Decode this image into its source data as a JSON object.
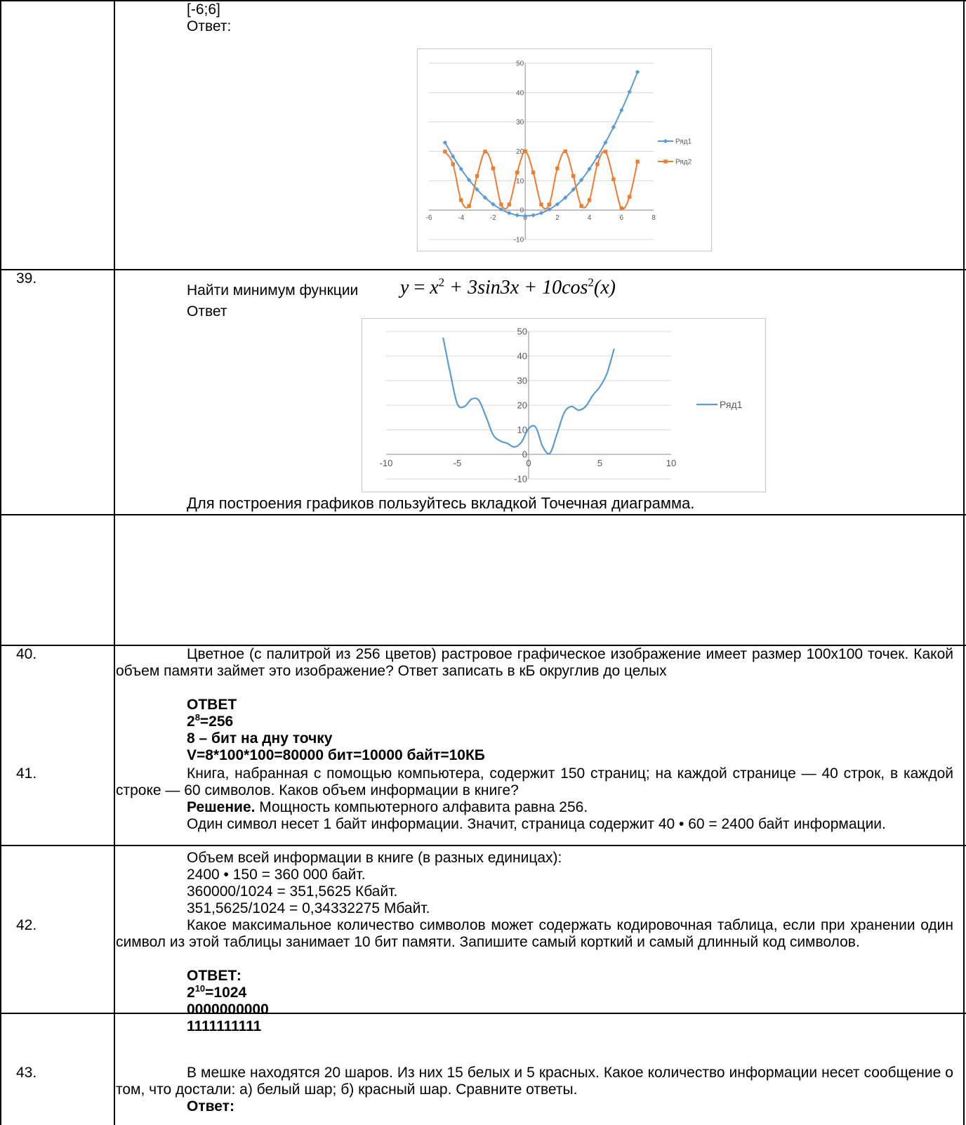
{
  "rows": {
    "r38": {
      "range": "[-6;6]",
      "answer_label": "Ответ:"
    },
    "r39": {
      "number": "39.",
      "task_prefix": "Найти минимум функции",
      "formula": {
        "y": "y",
        "eq": " = ",
        "x": "x",
        "p1": "2",
        "mid": " + 3sin3x + 10cos",
        "p2": "2",
        "tail": "(x)"
      },
      "answer_label": "Ответ",
      "note": "Для построения графиков пользуйтесь вкладкой Точечная диаграмма."
    },
    "r40": {
      "number": "40.",
      "text": "Цветное (с палитрой из 256 цветов) растровое графическое изображение имеет размер 100х100 точек. Какой объем памяти займет это изображение? Ответ записать в кБ округлив до целых",
      "answer_title": "ОТВЕТ",
      "pow_base": "2",
      "pow_exp": "8",
      "pow_rest": "=256",
      "line2": "8 – бит на дну точку",
      "line3": "V=8*100*100=80000 бит=10000 байт=10КБ"
    },
    "r41": {
      "number": "41.",
      "text": "Книга, набранная с помощью компьютера, содержит 150 страниц; на каждой странице — 40 строк, в каждой строке — 60 символов. Каков объем информации в книге?",
      "solution_label": "Решение.",
      "solution_text": " Мощность компьютерного алфавита равна 256.",
      "p2": "Один символ несет 1 байт информации. Значит, страница содержит 40 • 60 = 2400 байт информации.",
      "p3": "Объем всей информации в книге (в разных единицах):",
      "p4": "2400 • 150 = 360 000 байт.",
      "p5": "360000/1024 = 351,5625 Кбайт.",
      "p6": "351,5625/1024 = 0,34332275 Мбайт."
    },
    "r42": {
      "number": "42.",
      "text": "Какое максимальное количество символов может содержать кодировочная таблица, если при хранении один символ из этой таблицы занимает 10 бит памяти. Запишите самый корткий и самый длинный код символов.",
      "answer_title": "ОТВЕТ:",
      "pow_base": "2",
      "pow_exp": "10",
      "pow_rest": "=1024",
      "code_min": "0000000000",
      "code_max": "1111111111"
    },
    "r43": {
      "number": "43.",
      "text": "В мешке находятся 20 шаров. Из них 15 белых и 5 красных. Какое количество информации несет сообщение о том, что достали: а) белый шар; б) красный шар. Сравните ответы.",
      "answer_label": "Ответ:"
    }
  },
  "colors": {
    "blue": "#5b9bd5",
    "orange": "#ed7d31",
    "grid": "#d9d9d9"
  },
  "chart_data": [
    {
      "type": "scatter",
      "xlim": [
        -6,
        8
      ],
      "ylim": [
        -10,
        50
      ],
      "xticks": [
        "-6",
        "-4",
        "-2",
        "0",
        "2",
        "4",
        "6",
        "8"
      ],
      "yticks": [
        "-10",
        "0",
        "10",
        "20",
        "30",
        "40",
        "50"
      ],
      "legend_position": "right",
      "grid": true,
      "series": [
        {
          "name": "Ряд1",
          "color": "#5b9bd5",
          "marker": "diamond",
          "x": [
            -5,
            -4.5,
            -4,
            -3.5,
            -3,
            -2.5,
            -2,
            -1.5,
            -1,
            -0.5,
            0,
            0.5,
            1,
            1.5,
            2,
            2.5,
            3,
            3.5,
            4,
            4.5,
            5,
            5.5,
            6,
            6.5,
            7
          ],
          "y": [
            23,
            18.25,
            14,
            10.25,
            7,
            4.25,
            2,
            0.25,
            -1,
            -1.75,
            -2,
            -1.75,
            -1,
            0.25,
            2,
            4.25,
            7,
            10.25,
            14,
            18.25,
            23,
            28.25,
            34,
            40.25,
            47
          ]
        },
        {
          "name": "Ряд2",
          "color": "#ed7d31",
          "marker": "square",
          "x": [
            -5,
            -4.5,
            -4,
            -3.5,
            -3,
            -2.5,
            -2,
            -1.5,
            -1,
            -0.5,
            0,
            0.5,
            1,
            1.5,
            2,
            2.5,
            3,
            3.5,
            4,
            4.5,
            5,
            5.5,
            6,
            6.5,
            7
          ],
          "y": [
            19.9,
            15.6,
            3.4,
            1.4,
            11.6,
            19.9,
            14.2,
            1.9,
            1.9,
            12.8,
            20,
            12.8,
            1.9,
            1.9,
            14.2,
            20,
            11.6,
            1.4,
            3.4,
            15.6,
            19.9,
            10.5,
            0.6,
            4.5,
            16.5
          ]
        }
      ]
    },
    {
      "type": "line",
      "xlim": [
        -10,
        10
      ],
      "ylim": [
        -10,
        50
      ],
      "xticks": [
        "-10",
        "-5",
        "0",
        "5",
        "10"
      ],
      "yticks": [
        "-10",
        "0",
        "10",
        "20",
        "30",
        "40",
        "50"
      ],
      "legend_position": "right",
      "grid": true,
      "series": [
        {
          "name": "Ряд1",
          "color": "#5b9bd5",
          "x": [
            -6,
            -5.5,
            -5,
            -4.5,
            -4,
            -3.5,
            -3,
            -2.5,
            -2,
            -1.5,
            -1,
            -0.5,
            0,
            0.5,
            1,
            1.5,
            2,
            2.5,
            3,
            3.5,
            4,
            4.5,
            5,
            5.5,
            6
          ],
          "y": [
            47.5,
            33,
            20.5,
            19.5,
            22.5,
            22,
            15.5,
            8,
            5.5,
            4.5,
            3,
            5,
            10.5,
            11,
            3,
            0.5,
            8.5,
            17,
            19.5,
            18,
            19.5,
            24,
            27.5,
            33,
            43
          ]
        }
      ]
    }
  ]
}
